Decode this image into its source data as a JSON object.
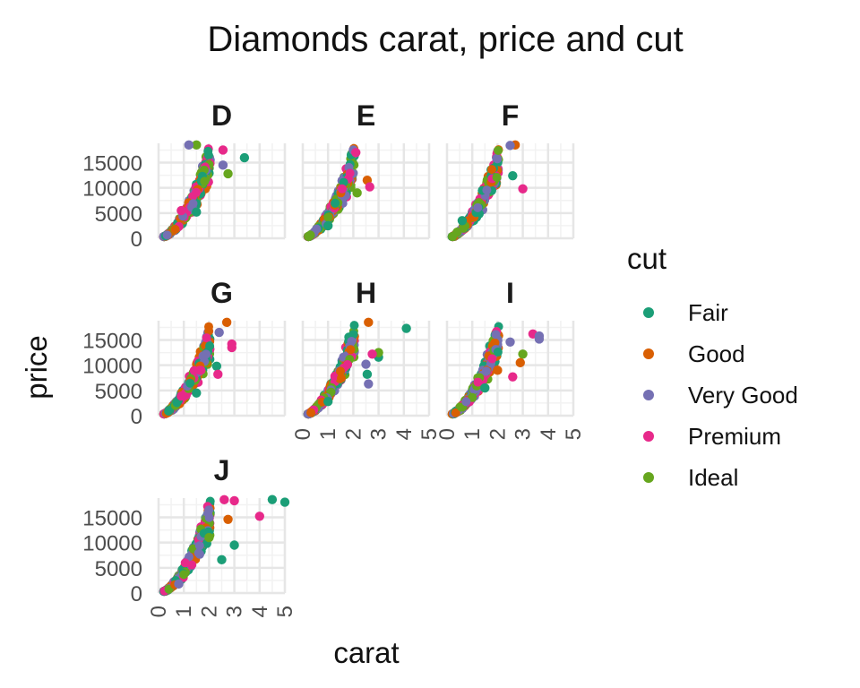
{
  "chart_data": {
    "type": "scatter",
    "title": "Diamonds carat, price and cut",
    "xlabel": "carat",
    "ylabel": "price",
    "xlim": [
      0,
      5
    ],
    "ylim": [
      0,
      18823
    ],
    "x_ticks": [
      "0",
      "1",
      "2",
      "3",
      "4",
      "5"
    ],
    "y_ticks": [
      "0",
      "5000",
      "10000",
      "15000"
    ],
    "grid": true,
    "legend": {
      "title": "cut",
      "position": "right",
      "entries": [
        "Fair",
        "Good",
        "Very Good",
        "Premium",
        "Ideal"
      ]
    },
    "colors": {
      "Fair": "#1b9e77",
      "Good": "#d95f02",
      "Very Good": "#7570b3",
      "Premium": "#e7298a",
      "Ideal": "#66a61e"
    },
    "facet_by": "color",
    "panels": [
      {
        "label": "D",
        "points": [
          {
            "cut": "Fair",
            "x": 3.4,
            "y": 15964
          },
          {
            "cut": "Ideal",
            "x": 2.75,
            "y": 12800
          },
          {
            "cut": "Very Good",
            "x": 2.55,
            "y": 14500
          },
          {
            "cut": "Premium",
            "x": 2.55,
            "y": 17500
          },
          {
            "cut": "Ideal",
            "x": 1.5,
            "y": 18500
          },
          {
            "cut": "Very Good",
            "x": 1.2,
            "y": 18500
          },
          {
            "cut": "Premium",
            "x": 0.9,
            "y": 5500
          },
          {
            "cut": "Fair",
            "x": 1.5,
            "y": 5200
          }
        ]
      },
      {
        "label": "E",
        "points": [
          {
            "cut": "Good",
            "x": 2.55,
            "y": 11500
          },
          {
            "cut": "Premium",
            "x": 2.65,
            "y": 10200
          },
          {
            "cut": "Ideal",
            "x": 2.15,
            "y": 9000
          },
          {
            "cut": "Very Good",
            "x": 2.0,
            "y": 17500
          },
          {
            "cut": "Premium",
            "x": 2.1,
            "y": 17000
          },
          {
            "cut": "Fair",
            "x": 1.0,
            "y": 2500
          },
          {
            "cut": "Ideal",
            "x": 0.3,
            "y": 600
          }
        ]
      },
      {
        "label": "F",
        "points": [
          {
            "cut": "Premium",
            "x": 3.0,
            "y": 9800
          },
          {
            "cut": "Fair",
            "x": 2.6,
            "y": 12400
          },
          {
            "cut": "Good",
            "x": 2.7,
            "y": 18500
          },
          {
            "cut": "Very Good",
            "x": 2.5,
            "y": 18400
          },
          {
            "cut": "Fair",
            "x": 0.6,
            "y": 3500
          },
          {
            "cut": "Ideal",
            "x": 0.4,
            "y": 1200
          }
        ]
      },
      {
        "label": "G",
        "points": [
          {
            "cut": "Good",
            "x": 2.7,
            "y": 18500
          },
          {
            "cut": "Premium",
            "x": 2.9,
            "y": 13500
          },
          {
            "cut": "Premium",
            "x": 2.9,
            "y": 14200
          },
          {
            "cut": "Fair",
            "x": 2.3,
            "y": 9800
          },
          {
            "cut": "Premium",
            "x": 2.35,
            "y": 8200
          },
          {
            "cut": "Very Good",
            "x": 2.4,
            "y": 16500
          },
          {
            "cut": "Fair",
            "x": 1.5,
            "y": 4500
          }
        ]
      },
      {
        "label": "H",
        "points": [
          {
            "cut": "Fair",
            "x": 4.1,
            "y": 17300
          },
          {
            "cut": "Good",
            "x": 2.6,
            "y": 18500
          },
          {
            "cut": "Fair",
            "x": 3.0,
            "y": 11600
          },
          {
            "cut": "Ideal",
            "x": 3.0,
            "y": 12500
          },
          {
            "cut": "Premium",
            "x": 2.75,
            "y": 12200
          },
          {
            "cut": "Very Good",
            "x": 2.6,
            "y": 6300
          },
          {
            "cut": "Fair",
            "x": 2.55,
            "y": 8200
          },
          {
            "cut": "Very Good",
            "x": 2.5,
            "y": 10200
          },
          {
            "cut": "Fair",
            "x": 1.0,
            "y": 2800
          }
        ]
      },
      {
        "label": "I",
        "points": [
          {
            "cut": "Premium",
            "x": 3.4,
            "y": 16200
          },
          {
            "cut": "Very Good",
            "x": 3.65,
            "y": 15800
          },
          {
            "cut": "Very Good",
            "x": 3.65,
            "y": 15200
          },
          {
            "cut": "Ideal",
            "x": 3.0,
            "y": 12200
          },
          {
            "cut": "Good",
            "x": 2.9,
            "y": 10500
          },
          {
            "cut": "Premium",
            "x": 2.6,
            "y": 7700
          },
          {
            "cut": "Very Good",
            "x": 2.5,
            "y": 14600
          },
          {
            "cut": "Fair",
            "x": 1.5,
            "y": 5500
          },
          {
            "cut": "Good",
            "x": 2.0,
            "y": 9000
          }
        ]
      },
      {
        "label": "J",
        "points": [
          {
            "cut": "Fair",
            "x": 5.0,
            "y": 18018
          },
          {
            "cut": "Fair",
            "x": 4.5,
            "y": 18531
          },
          {
            "cut": "Premium",
            "x": 4.0,
            "y": 15223
          },
          {
            "cut": "Premium",
            "x": 3.0,
            "y": 18300
          },
          {
            "cut": "Premium",
            "x": 2.6,
            "y": 18500
          },
          {
            "cut": "Good",
            "x": 2.75,
            "y": 14600
          },
          {
            "cut": "Fair",
            "x": 3.0,
            "y": 9500
          },
          {
            "cut": "Fair",
            "x": 2.5,
            "y": 6600
          },
          {
            "cut": "Ideal",
            "x": 2.0,
            "y": 11000
          },
          {
            "cut": "Very Good",
            "x": 0.8,
            "y": 1800
          }
        ]
      }
    ]
  }
}
